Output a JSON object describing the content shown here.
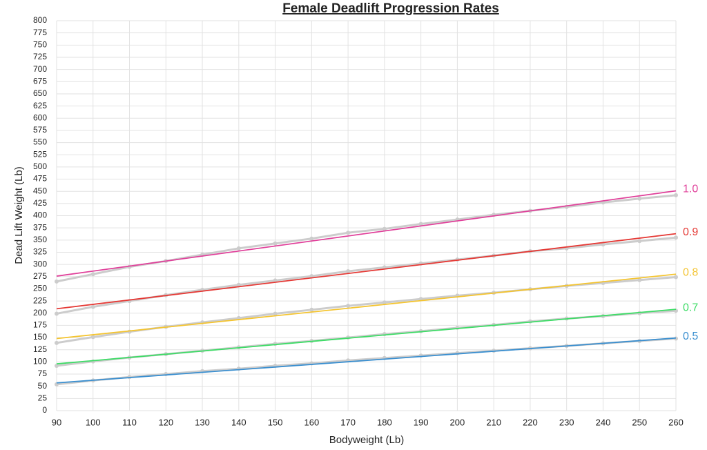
{
  "chart_data": {
    "type": "line",
    "title": "Female Deadlift Progression Rates",
    "x_label": "Bodyweight (Lb)",
    "y_label": "Dead Lift Weight (Lb)",
    "x": [
      90,
      100,
      110,
      120,
      130,
      140,
      150,
      160,
      170,
      180,
      190,
      200,
      210,
      220,
      230,
      240,
      250,
      260
    ],
    "xlim": [
      90,
      260
    ],
    "xticks": [
      90,
      100,
      110,
      120,
      130,
      140,
      150,
      160,
      170,
      180,
      190,
      200,
      210,
      220,
      230,
      240,
      250,
      260
    ],
    "ylim": [
      0,
      800
    ],
    "yticks": [
      0,
      25,
      50,
      75,
      100,
      125,
      150,
      175,
      200,
      225,
      250,
      275,
      300,
      325,
      350,
      375,
      400,
      425,
      450,
      475,
      500,
      525,
      550,
      575,
      600,
      625,
      650,
      675,
      700,
      725,
      750,
      775,
      800
    ],
    "grid": true,
    "series": [
      {
        "color": "#cccccc",
        "values": [
          265,
          280,
          295,
          307,
          320,
          333,
          343,
          353,
          365,
          373,
          383,
          392,
          402,
          410,
          418,
          427,
          435,
          442
        ]
      },
      {
        "color": "#cccccc",
        "values": [
          199,
          213,
          225,
          237,
          248,
          258,
          267,
          276,
          286,
          294,
          302,
          310,
          318,
          327,
          333,
          341,
          348,
          355
        ]
      },
      {
        "color": "#cccccc",
        "values": [
          139,
          151,
          162,
          172,
          181,
          190,
          199,
          207,
          215,
          222,
          229,
          236,
          242,
          249,
          256,
          262,
          268,
          274
        ]
      },
      {
        "color": "#cccccc",
        "values": [
          92,
          101,
          109,
          116,
          123,
          130,
          137,
          143,
          150,
          157,
          163,
          170,
          176,
          183,
          189,
          194,
          200,
          205
        ]
      },
      {
        "color": "#cccccc",
        "values": [
          54,
          62,
          69,
          75,
          81,
          86,
          92,
          97,
          103,
          108,
          113,
          118,
          123,
          128,
          133,
          138,
          143,
          148
        ]
      }
    ],
    "trendlines": [
      {
        "name": "1.0",
        "color": "#e0409a",
        "x": [
          90,
          260
        ],
        "values": [
          276,
          451
        ]
      },
      {
        "name": "0.9",
        "color": "#e53935",
        "x": [
          90,
          260
        ],
        "values": [
          209,
          363
        ]
      },
      {
        "name": "0.8",
        "color": "#f4c430",
        "x": [
          90,
          260
        ],
        "values": [
          148,
          280
        ]
      },
      {
        "name": "0.7",
        "color": "#3ddc66",
        "x": [
          90,
          260
        ],
        "values": [
          96,
          208
        ]
      },
      {
        "name": "0.5",
        "color": "#3a8fd0",
        "x": [
          90,
          260
        ],
        "values": [
          57,
          149
        ]
      }
    ]
  }
}
